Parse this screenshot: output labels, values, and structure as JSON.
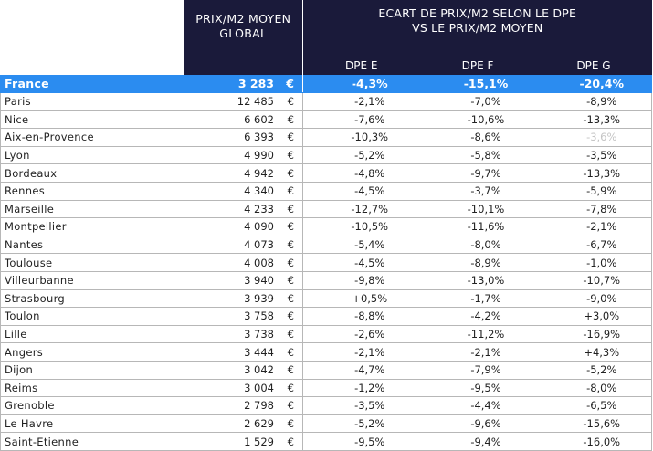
{
  "header": {
    "global_line1": "PRIX/M2 MOYEN",
    "global_line2": "GLOBAL",
    "ecart_line1": "ECART DE PRIX/M2 SELON LE DPE",
    "ecart_line2": "VS LE PRIX/M2 MOYEN",
    "dpe_e": "DPE E",
    "dpe_f": "DPE F",
    "dpe_g": "DPE G"
  },
  "currency": "€",
  "france": {
    "city": "France",
    "price": "3 283",
    "e": "-4,3%",
    "f": "-15,1%",
    "g": "-20,4%"
  },
  "rows": [
    {
      "city": "Paris",
      "price": "12 485",
      "e": "-2,1%",
      "f": "-7,0%",
      "g": "-8,9%"
    },
    {
      "city": "Nice",
      "price": "6 602",
      "e": "-7,6%",
      "f": "-10,6%",
      "g": "-13,3%"
    },
    {
      "city": "Aix-en-Provence",
      "price": "6 393",
      "e": "-10,3%",
      "f": "-8,6%",
      "g": "-3,6%"
    },
    {
      "city": "Lyon",
      "price": "4 990",
      "e": "-5,2%",
      "f": "-5,8%",
      "g": "-3,5%"
    },
    {
      "city": "Bordeaux",
      "price": "4 942",
      "e": "-4,8%",
      "f": "-9,7%",
      "g": "-13,3%"
    },
    {
      "city": "Rennes",
      "price": "4 340",
      "e": "-4,5%",
      "f": "-3,7%",
      "g": "-5,9%"
    },
    {
      "city": "Marseille",
      "price": "4 233",
      "e": "-12,7%",
      "f": "-10,1%",
      "g": "-7,8%"
    },
    {
      "city": "Montpellier",
      "price": "4 090",
      "e": "-10,5%",
      "f": "-11,6%",
      "g": "-2,1%"
    },
    {
      "city": "Nantes",
      "price": "4 073",
      "e": "-5,4%",
      "f": "-8,0%",
      "g": "-6,7%"
    },
    {
      "city": "Toulouse",
      "price": "4 008",
      "e": "-4,5%",
      "f": "-8,9%",
      "g": "-1,0%"
    },
    {
      "city": "Villeurbanne",
      "price": "3 940",
      "e": "-9,8%",
      "f": "-13,0%",
      "g": "-10,7%"
    },
    {
      "city": "Strasbourg",
      "price": "3 939",
      "e": "+0,5%",
      "f": "-1,7%",
      "g": "-9,0%"
    },
    {
      "city": "Toulon",
      "price": "3 758",
      "e": "-8,8%",
      "f": "-4,2%",
      "g": "+3,0%"
    },
    {
      "city": "Lille",
      "price": "3 738",
      "e": "-2,6%",
      "f": "-11,2%",
      "g": "-16,9%"
    },
    {
      "city": "Angers",
      "price": "3 444",
      "e": "-2,1%",
      "f": "-2,1%",
      "g": "+4,3%"
    },
    {
      "city": "Dijon",
      "price": "3 042",
      "e": "-4,7%",
      "f": "-7,9%",
      "g": "-5,2%"
    },
    {
      "city": "Reims",
      "price": "3 004",
      "e": "-1,2%",
      "f": "-9,5%",
      "g": "-8,0%"
    },
    {
      "city": "Grenoble",
      "price": "2 798",
      "e": "-3,5%",
      "f": "-4,4%",
      "g": "-6,5%"
    },
    {
      "city": "Le Havre",
      "price": "2 629",
      "e": "-5,2%",
      "f": "-9,6%",
      "g": "-15,6%"
    },
    {
      "city": "Saint-Etienne",
      "price": "1 529",
      "e": "-9,5%",
      "f": "-9,4%",
      "g": "-16,0%"
    }
  ],
  "styles": {
    "header_bg": "#1a1a3a",
    "france_bg": "#2b8cf0",
    "muted_text": "#c4c4c4"
  }
}
